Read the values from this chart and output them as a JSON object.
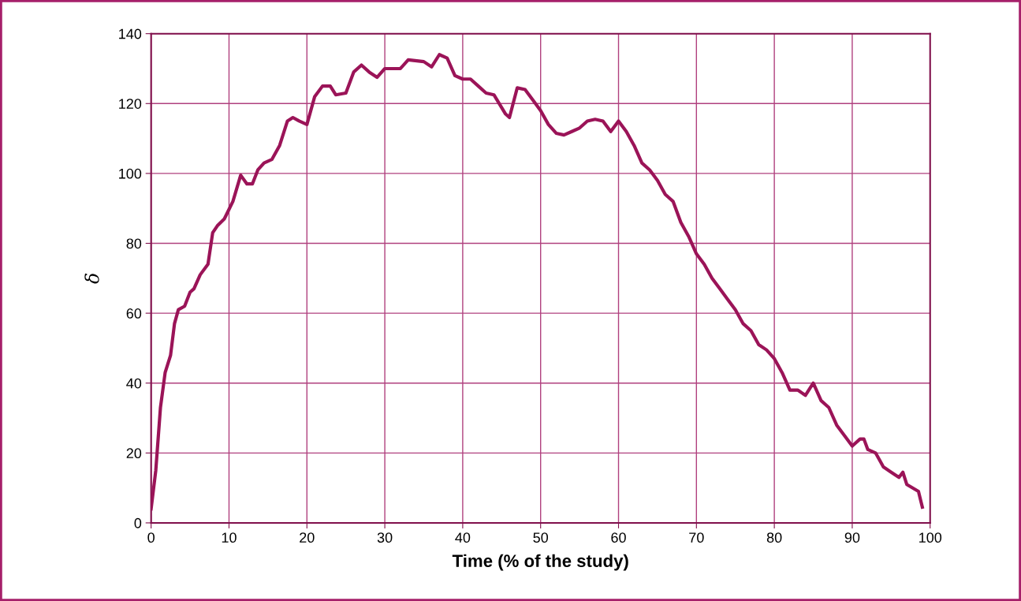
{
  "chart_data": {
    "type": "line",
    "xlabel": "Time (% of the study)",
    "ylabel": "δ",
    "xlim": [
      0,
      100
    ],
    "xticks": [
      0,
      10,
      20,
      30,
      40,
      50,
      60,
      70,
      80,
      90,
      100
    ],
    "ylim": [
      0,
      140
    ],
    "yticks": [
      0,
      20,
      40,
      60,
      80,
      100,
      120,
      140
    ],
    "grid": true,
    "marker": "none",
    "line_style": "solid",
    "series": [
      {
        "color": "#9b1458",
        "x": [
          0,
          0.6,
          1.2,
          1.8,
          2.5,
          3.0,
          3.5,
          4.3,
          5.0,
          5.5,
          6.3,
          7.3,
          7.9,
          8.5,
          9.4,
          10.5,
          11.5,
          12.3,
          13,
          13.7,
          14.5,
          15.5,
          16.5,
          17.5,
          18.2,
          19,
          20,
          21,
          22,
          23,
          23.7,
          25,
          26,
          27,
          28,
          29,
          30,
          31,
          32,
          33,
          35,
          36,
          37,
          38,
          39,
          40,
          41,
          42,
          43,
          44,
          45.5,
          46,
          47,
          48,
          49,
          50,
          51,
          52,
          53,
          54,
          55,
          56,
          57,
          58,
          59,
          60,
          61,
          62,
          63,
          64,
          65,
          66,
          67,
          68,
          69,
          70,
          71,
          72,
          73,
          74,
          75,
          76,
          77,
          78,
          79,
          80,
          81,
          82,
          83,
          84,
          85,
          86,
          87,
          88,
          89,
          90,
          91,
          91.5,
          92,
          93,
          94,
          95,
          96,
          96.5,
          97,
          98.5,
          99
        ],
        "values": [
          4,
          15,
          33,
          43,
          48,
          57,
          61,
          62,
          66,
          67,
          71,
          74,
          83,
          85,
          87,
          92,
          99.5,
          97,
          97,
          101,
          103,
          104,
          108,
          115,
          116,
          115,
          114,
          122,
          125,
          125,
          122.5,
          123,
          129,
          131,
          129,
          127.5,
          130,
          130,
          130,
          132.5,
          132,
          130.5,
          134,
          133,
          128,
          127,
          127,
          125,
          123,
          122.5,
          117,
          116,
          124.5,
          124,
          121,
          118,
          114,
          111.5,
          111,
          112,
          113,
          115,
          115.5,
          115,
          112,
          115,
          112,
          108,
          103,
          101,
          98,
          94,
          92,
          86,
          82,
          77,
          74,
          70,
          67,
          64,
          61,
          57,
          55,
          51,
          49.5,
          47,
          43,
          38,
          38,
          36.5,
          40,
          35,
          33,
          28,
          25,
          22,
          24,
          24,
          21,
          20,
          16,
          14.5,
          13,
          14.5,
          11,
          9,
          4.5
        ]
      }
    ]
  }
}
